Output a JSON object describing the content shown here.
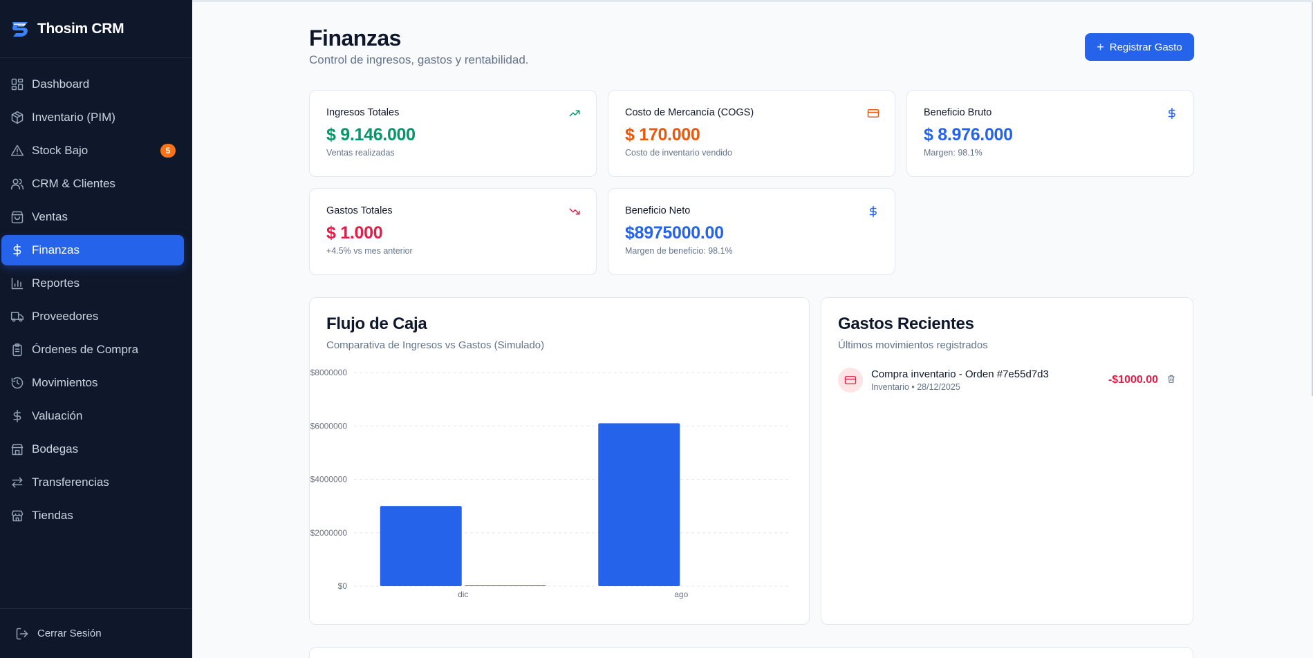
{
  "app": {
    "name": "Thosim CRM"
  },
  "sidebar": {
    "items": [
      {
        "label": "Dashboard",
        "icon": "dashboard-icon"
      },
      {
        "label": "Inventario (PIM)",
        "icon": "package-icon"
      },
      {
        "label": "Stock Bajo",
        "icon": "alert-triangle-icon",
        "badge": "5"
      },
      {
        "label": "CRM & Clientes",
        "icon": "users-icon"
      },
      {
        "label": "Ventas",
        "icon": "shopping-bag-icon"
      },
      {
        "label": "Finanzas",
        "icon": "dollar-icon",
        "active": true
      },
      {
        "label": "Reportes",
        "icon": "bar-chart-icon"
      },
      {
        "label": "Proveedores",
        "icon": "truck-icon"
      },
      {
        "label": "Órdenes de Compra",
        "icon": "clipboard-icon"
      },
      {
        "label": "Movimientos",
        "icon": "history-icon"
      },
      {
        "label": "Valuación",
        "icon": "dollar-icon"
      },
      {
        "label": "Bodegas",
        "icon": "warehouse-icon"
      },
      {
        "label": "Transferencias",
        "icon": "transfer-icon"
      },
      {
        "label": "Tiendas",
        "icon": "store-icon"
      }
    ],
    "logout": "Cerrar Sesión"
  },
  "header": {
    "title": "Finanzas",
    "subtitle": "Control de ingresos, gastos y rentabilidad.",
    "action": "Registrar Gasto"
  },
  "stats": [
    {
      "label": "Ingresos Totales",
      "value": "$ 9.146.000",
      "note": "Ventas realizadas",
      "color": "#059669",
      "icon": "trending-up-icon"
    },
    {
      "label": "Costo de Mercancía (COGS)",
      "value": "$ 170.000",
      "note": "Costo de inventario vendido",
      "color": "#ea580c",
      "icon": "credit-card-icon"
    },
    {
      "label": "Beneficio Bruto",
      "value": "$ 8.976.000",
      "note": "Margen: 98.1%",
      "color": "#2563eb",
      "icon": "dollar-icon"
    },
    {
      "label": "Gastos Totales",
      "value": "$ 1.000",
      "note": "+4.5% vs mes anterior",
      "color": "#e11d48",
      "icon": "trending-down-icon"
    },
    {
      "label": "Beneficio Neto",
      "value": "$8975000.00",
      "note": "Margen de beneficio: 98.1%",
      "color": "#2563eb",
      "icon": "dollar-icon"
    }
  ],
  "cashflow": {
    "title": "Flujo de Caja",
    "subtitle": "Comparativa de Ingresos vs Gastos (Simulado)"
  },
  "chart_data": {
    "type": "bar",
    "categories": [
      "dic",
      "ago"
    ],
    "series": [
      {
        "values": [
          3000000,
          6100000
        ],
        "color": "#2563eb"
      },
      {
        "values": [
          1000,
          0
        ],
        "color": "#e11d48"
      }
    ],
    "yticks": [
      "$0",
      "$2000000",
      "$4000000",
      "$6000000",
      "$8000000"
    ],
    "ylim": [
      0,
      8000000
    ],
    "grid": true
  },
  "expenses": {
    "title": "Gastos Recientes",
    "subtitle": "Últimos movimientos registrados",
    "items": [
      {
        "description": "Compra inventario - Orden #7e55d7d3",
        "meta": "Inventario • 28/12/2025",
        "amount": "-$1000.00"
      }
    ]
  }
}
